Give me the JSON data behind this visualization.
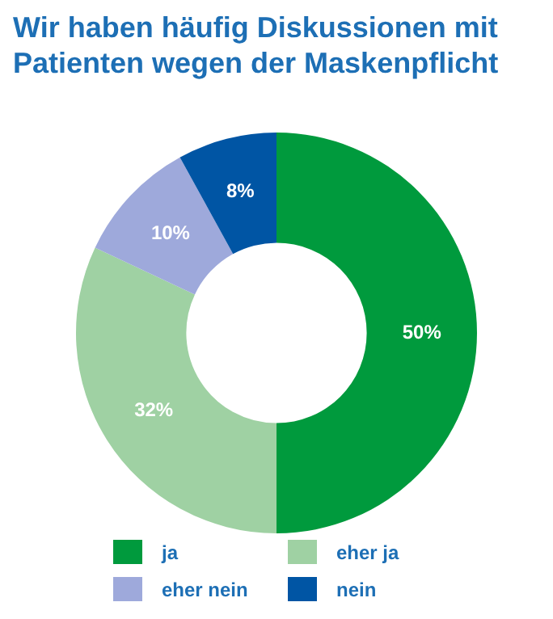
{
  "chart_data": {
    "type": "donut",
    "title": "Wir haben häufig Diskussionen mit Patienten wegen der Maskenpflicht",
    "categories": [
      "ja",
      "eher ja",
      "eher nein",
      "nein"
    ],
    "values": [
      50,
      32,
      10,
      8
    ],
    "value_labels": [
      "50%",
      "32%",
      "10%",
      "8%"
    ],
    "colors": [
      "#009a3d",
      "#9fd1a3",
      "#9ea9db",
      "#0055a4"
    ],
    "legend": "bottom"
  }
}
